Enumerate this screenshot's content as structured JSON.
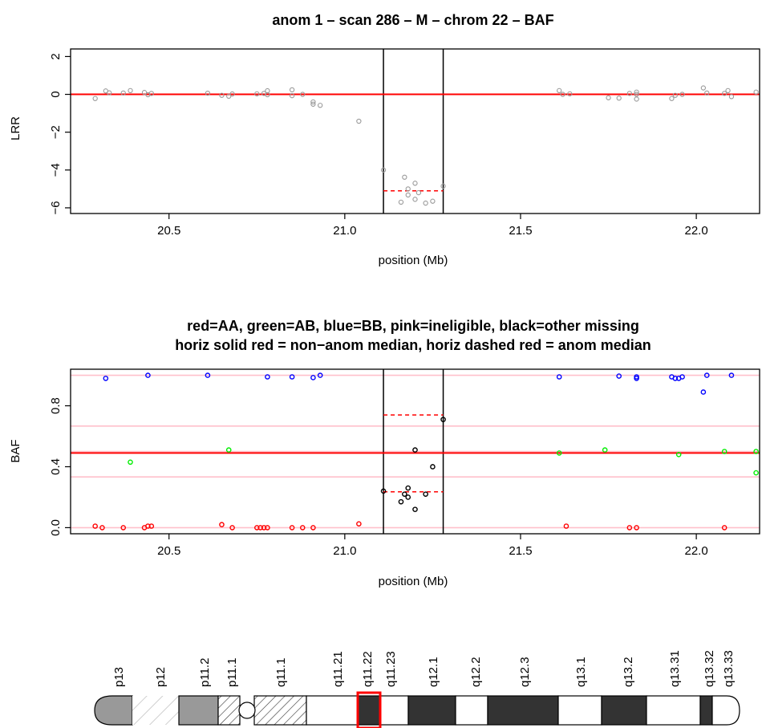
{
  "chart_data": [
    {
      "type": "scatter",
      "title": "anom 1 – scan 286 – M – chrom 22 – BAF",
      "xlabel": "position (Mb)",
      "ylabel": "LRR",
      "xlim": [
        20.22,
        22.18
      ],
      "ylim": [
        -6.3,
        2.4
      ],
      "xticks": [
        20.5,
        21.0,
        21.5,
        22.0
      ],
      "xtick_labels": [
        "20.5",
        "21.0",
        "21.5",
        "22.0"
      ],
      "yticks": [
        2,
        0,
        -2,
        -4,
        -6
      ],
      "ytick_labels": [
        "2",
        "0",
        "−2",
        "−4",
        "−6"
      ],
      "anomaly_bounds": [
        21.11,
        21.28
      ],
      "non_anom_median": 0,
      "anom_median": -5.1,
      "points": [
        [
          20.29,
          -0.22
        ],
        [
          20.32,
          0.18
        ],
        [
          20.33,
          0.08
        ],
        [
          20.37,
          0.07
        ],
        [
          20.39,
          0.2
        ],
        [
          20.43,
          0.1
        ],
        [
          20.44,
          -0.02
        ],
        [
          20.45,
          0.05
        ],
        [
          20.61,
          0.06
        ],
        [
          20.65,
          -0.05
        ],
        [
          20.67,
          -0.1
        ],
        [
          20.68,
          0.02
        ],
        [
          20.75,
          0.03
        ],
        [
          20.77,
          0.05
        ],
        [
          20.78,
          0.19
        ],
        [
          20.78,
          -0.02
        ],
        [
          20.85,
          0.24
        ],
        [
          20.85,
          -0.07
        ],
        [
          20.88,
          0.0
        ],
        [
          20.91,
          -0.4
        ],
        [
          20.91,
          -0.52
        ],
        [
          20.93,
          -0.58
        ],
        [
          21.04,
          -1.42
        ],
        [
          21.11,
          -4.0
        ],
        [
          21.16,
          -5.7
        ],
        [
          21.17,
          -4.38
        ],
        [
          21.18,
          -5.0
        ],
        [
          21.18,
          -5.32
        ],
        [
          21.2,
          -4.7
        ],
        [
          21.2,
          -5.55
        ],
        [
          21.21,
          -5.2
        ],
        [
          21.23,
          -5.75
        ],
        [
          21.25,
          -5.65
        ],
        [
          21.28,
          -4.85
        ],
        [
          21.61,
          0.2
        ],
        [
          21.62,
          0.0
        ],
        [
          21.64,
          0.03
        ],
        [
          21.75,
          -0.18
        ],
        [
          21.78,
          -0.2
        ],
        [
          21.81,
          0.05
        ],
        [
          21.83,
          0.12
        ],
        [
          21.83,
          -0.25
        ],
        [
          21.83,
          0.0
        ],
        [
          21.93,
          -0.22
        ],
        [
          21.94,
          -0.05
        ],
        [
          21.96,
          0.0
        ],
        [
          22.02,
          0.34
        ],
        [
          22.03,
          0.07
        ],
        [
          22.08,
          0.05
        ],
        [
          22.09,
          0.2
        ],
        [
          22.1,
          -0.12
        ],
        [
          22.17,
          0.12
        ]
      ]
    },
    {
      "type": "scatter",
      "title": "red=AA, green=AB, blue=BB, pink=ineligible, black=other missing",
      "subtitle": "horiz solid red = non−anom median, horiz dashed red = anom median",
      "xlabel": "position (Mb)",
      "ylabel": "BAF",
      "xlim": [
        20.22,
        22.18
      ],
      "ylim": [
        -0.04,
        1.04
      ],
      "xticks": [
        20.5,
        21.0,
        21.5,
        22.0
      ],
      "xtick_labels": [
        "20.5",
        "21.0",
        "21.5",
        "22.0"
      ],
      "yticks": [
        0.0,
        0.4,
        0.8
      ],
      "ytick_labels": [
        "0.0",
        "0.4",
        "0.8"
      ],
      "anomaly_bounds": [
        21.11,
        21.28
      ],
      "non_anom_median": 0.49,
      "anom_medians": [
        0.74,
        0.235
      ],
      "reference_lines": [
        1.0,
        0.667,
        0.5,
        0.333,
        0.0
      ],
      "colors": {
        "AA": "#ff0000",
        "AB": "#00ee00",
        "BB": "#0000ff",
        "ineligible": "#ffc0cb",
        "other": "#000000",
        "median": "#ff0000"
      },
      "series": [
        {
          "key": "AA",
          "points": [
            [
              20.29,
              0.01
            ],
            [
              20.31,
              0.0
            ],
            [
              20.37,
              0.0
            ],
            [
              20.43,
              0.0
            ],
            [
              20.44,
              0.01
            ],
            [
              20.45,
              0.01
            ],
            [
              20.65,
              0.02
            ],
            [
              20.68,
              0.0
            ],
            [
              20.75,
              0.0
            ],
            [
              20.76,
              0.0
            ],
            [
              20.77,
              0.0
            ],
            [
              20.78,
              0.0
            ],
            [
              20.85,
              0.0
            ],
            [
              20.88,
              0.0
            ],
            [
              20.91,
              0.0
            ],
            [
              21.04,
              0.025
            ],
            [
              21.63,
              0.01
            ],
            [
              21.81,
              0.0
            ],
            [
              21.83,
              0.0
            ],
            [
              22.08,
              0.0
            ]
          ]
        },
        {
          "key": "AB",
          "points": [
            [
              20.39,
              0.43
            ],
            [
              20.67,
              0.51
            ],
            [
              21.61,
              0.49
            ],
            [
              21.74,
              0.51
            ],
            [
              21.95,
              0.48
            ],
            [
              22.08,
              0.5
            ],
            [
              22.17,
              0.5
            ],
            [
              22.17,
              0.36
            ]
          ]
        },
        {
          "key": "BB",
          "points": [
            [
              20.32,
              0.98
            ],
            [
              20.44,
              1.0
            ],
            [
              20.61,
              1.0
            ],
            [
              20.78,
              0.99
            ],
            [
              20.85,
              0.99
            ],
            [
              20.91,
              0.985
            ],
            [
              20.93,
              1.0
            ],
            [
              21.61,
              0.99
            ],
            [
              21.78,
              0.995
            ],
            [
              21.83,
              0.99
            ],
            [
              21.83,
              0.98
            ],
            [
              21.93,
              0.99
            ],
            [
              21.94,
              0.98
            ],
            [
              21.95,
              0.98
            ],
            [
              21.96,
              0.99
            ],
            [
              22.02,
              0.89
            ],
            [
              22.03,
              1.0
            ],
            [
              22.1,
              1.0
            ]
          ]
        },
        {
          "key": "other",
          "points": [
            [
              21.11,
              0.24
            ],
            [
              21.16,
              0.17
            ],
            [
              21.17,
              0.22
            ],
            [
              21.18,
              0.26
            ],
            [
              21.18,
              0.2
            ],
            [
              21.2,
              0.51
            ],
            [
              21.2,
              0.12
            ],
            [
              21.23,
              0.22
            ],
            [
              21.25,
              0.4
            ],
            [
              21.28,
              0.71
            ]
          ]
        }
      ]
    }
  ],
  "ideogram": {
    "bands": [
      "p13",
      "p12",
      "p11.2",
      "p11.1",
      "q11.1",
      "q11.21",
      "q11.22",
      "q11.23",
      "q12.1",
      "q12.2",
      "q12.3",
      "q13.1",
      "q13.2",
      "q13.31",
      "q13.32",
      "q13.33"
    ],
    "highlight_band": "q11.22",
    "highlight_color": "#ff0000"
  }
}
